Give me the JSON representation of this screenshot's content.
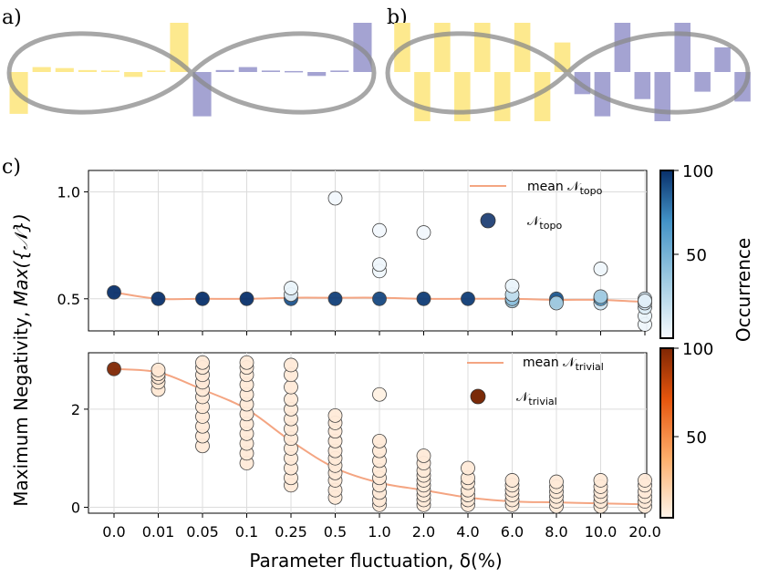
{
  "panels": {
    "a": {
      "label": "a)",
      "bars": [
        -0.85,
        0.1,
        0.08,
        0.04,
        0.03,
        -0.1,
        0.03,
        1.0,
        -0.9,
        0.04,
        0.1,
        0.03,
        0.02,
        -0.08,
        0.03,
        1.0
      ]
    },
    "b": {
      "label": "b)",
      "bars": [
        1.0,
        -1.0,
        1.0,
        -1.0,
        1.0,
        -1.0,
        1.0,
        -1.0,
        0.6,
        -0.45,
        -0.9,
        1.0,
        -0.55,
        -1.0,
        1.0,
        -0.4,
        0.5,
        -0.6
      ]
    },
    "c": {
      "label": "c)"
    }
  },
  "colors": {
    "topo_marker": "#2b4a7c",
    "trivial_marker": "#7a2a08",
    "mean_line": "#f4a582",
    "panel_a_b_yellow": "#fde98e",
    "panel_a_b_purple": "#a4a3d2",
    "loop": "#8a8a8a",
    "grid": "#dcdcdc"
  },
  "chart_data": [
    {
      "type": "scatter",
      "id": "topo",
      "categories": [
        "0.0",
        "0.01",
        "0.05",
        "0.1",
        "0.25",
        "0.5",
        "1.0",
        "2.0",
        "4.0",
        "6.0",
        "8.0",
        "10.0",
        "20.0"
      ],
      "ylabel": "Max({𝒩})",
      "ylim": [
        0.35,
        1.1
      ],
      "yticks": [
        "0.5",
        "1.0"
      ],
      "ytick_values": [
        0.5,
        1.0
      ],
      "grid": true,
      "legend": [
        "mean 𝒩",
        "topo",
        "𝒩",
        "topo"
      ],
      "legend_placement": "top-right",
      "colorbar": {
        "ticks": [
          "50",
          "100"
        ],
        "tick_values": [
          50,
          100
        ],
        "range": [
          0,
          100
        ],
        "colors": [
          "#f7fbff",
          "#9ecae1",
          "#4292c6",
          "#08306b"
        ]
      },
      "points": [
        [
          0,
          0.53,
          100
        ],
        [
          1,
          0.5,
          100
        ],
        [
          2,
          0.5,
          100
        ],
        [
          3,
          0.5,
          100
        ],
        [
          4,
          0.5,
          88
        ],
        [
          4,
          0.52,
          8
        ],
        [
          4,
          0.55,
          5
        ],
        [
          5,
          0.5,
          95
        ],
        [
          5,
          0.97,
          2
        ],
        [
          6,
          0.5,
          92
        ],
        [
          6,
          0.63,
          3
        ],
        [
          6,
          0.66,
          3
        ],
        [
          6,
          0.82,
          2
        ],
        [
          7,
          0.5,
          96
        ],
        [
          7,
          0.81,
          2
        ],
        [
          8,
          0.5,
          96
        ],
        [
          9,
          0.49,
          30
        ],
        [
          9,
          0.5,
          40
        ],
        [
          9,
          0.52,
          20
        ],
        [
          9,
          0.56,
          5
        ],
        [
          10,
          0.49,
          85
        ],
        [
          10,
          0.5,
          85
        ],
        [
          10,
          0.48,
          30
        ],
        [
          11,
          0.48,
          15
        ],
        [
          11,
          0.5,
          60
        ],
        [
          11,
          0.51,
          30
        ],
        [
          11,
          0.64,
          3
        ],
        [
          12,
          0.38,
          3
        ],
        [
          12,
          0.42,
          5
        ],
        [
          12,
          0.46,
          10
        ],
        [
          12,
          0.48,
          12
        ],
        [
          12,
          0.5,
          14
        ],
        [
          12,
          0.49,
          8
        ]
      ],
      "mean": [
        0.53,
        0.5,
        0.5,
        0.5,
        0.505,
        0.505,
        0.505,
        0.5,
        0.5,
        0.5,
        0.495,
        0.495,
        0.485
      ]
    },
    {
      "type": "scatter",
      "id": "trivial",
      "categories": [
        "0.0",
        "0.01",
        "0.05",
        "0.1",
        "0.25",
        "0.5",
        "1.0",
        "2.0",
        "4.0",
        "6.0",
        "8.0",
        "10.0",
        "20.0"
      ],
      "xlabel": "Parameter fluctuation, δ(%)",
      "ylabel": "Maximum Negativity,",
      "ylim": [
        -0.12,
        3.15
      ],
      "yticks": [
        "0",
        "2"
      ],
      "ytick_values": [
        0,
        2
      ],
      "grid": true,
      "legend": [
        "mean 𝒩",
        "trivial",
        "𝒩",
        "trivial"
      ],
      "legend_placement": "top-right",
      "colorbar": {
        "ticks": [
          "50",
          "100"
        ],
        "tick_values": [
          50,
          100
        ],
        "range": [
          0,
          100
        ],
        "colors": [
          "#fff5eb",
          "#fdae6b",
          "#e6550d",
          "#7f2704"
        ]
      },
      "points": [
        [
          0,
          2.82,
          100
        ],
        [
          1,
          2.4,
          6
        ],
        [
          1,
          2.55,
          6
        ],
        [
          1,
          2.65,
          6
        ],
        [
          1,
          2.72,
          6
        ],
        [
          1,
          2.8,
          6
        ],
        [
          2,
          1.25,
          5
        ],
        [
          2,
          1.45,
          5
        ],
        [
          2,
          1.65,
          5
        ],
        [
          2,
          1.85,
          5
        ],
        [
          2,
          2.05,
          5
        ],
        [
          2,
          2.25,
          5
        ],
        [
          2,
          2.4,
          5
        ],
        [
          2,
          2.55,
          5
        ],
        [
          2,
          2.7,
          5
        ],
        [
          2,
          2.85,
          5
        ],
        [
          2,
          2.95,
          5
        ],
        [
          3,
          0.9,
          5
        ],
        [
          3,
          1.1,
          5
        ],
        [
          3,
          1.3,
          5
        ],
        [
          3,
          1.5,
          5
        ],
        [
          3,
          1.7,
          5
        ],
        [
          3,
          1.9,
          5
        ],
        [
          3,
          2.1,
          5
        ],
        [
          3,
          2.3,
          5
        ],
        [
          3,
          2.5,
          5
        ],
        [
          3,
          2.7,
          5
        ],
        [
          3,
          2.85,
          5
        ],
        [
          3,
          2.95,
          5
        ],
        [
          4,
          0.45,
          5
        ],
        [
          4,
          0.6,
          5
        ],
        [
          4,
          0.8,
          5
        ],
        [
          4,
          1.0,
          5
        ],
        [
          4,
          1.2,
          5
        ],
        [
          4,
          1.4,
          5
        ],
        [
          4,
          1.6,
          5
        ],
        [
          4,
          1.8,
          5
        ],
        [
          4,
          2.0,
          5
        ],
        [
          4,
          2.2,
          5
        ],
        [
          4,
          2.45,
          5
        ],
        [
          4,
          2.7,
          5
        ],
        [
          4,
          2.9,
          5
        ],
        [
          5,
          0.2,
          5
        ],
        [
          5,
          0.35,
          5
        ],
        [
          5,
          0.55,
          5
        ],
        [
          5,
          0.7,
          5
        ],
        [
          5,
          0.85,
          5
        ],
        [
          5,
          1.0,
          5
        ],
        [
          5,
          1.15,
          5
        ],
        [
          5,
          1.35,
          5
        ],
        [
          5,
          1.55,
          5
        ],
        [
          5,
          1.72,
          5
        ],
        [
          5,
          1.87,
          5
        ],
        [
          6,
          0.05,
          5
        ],
        [
          6,
          0.15,
          5
        ],
        [
          6,
          0.3,
          5
        ],
        [
          6,
          0.45,
          5
        ],
        [
          6,
          0.6,
          5
        ],
        [
          6,
          0.75,
          5
        ],
        [
          6,
          0.95,
          5
        ],
        [
          6,
          1.15,
          5
        ],
        [
          6,
          1.35,
          5
        ],
        [
          6,
          2.3,
          2
        ],
        [
          7,
          0.05,
          5
        ],
        [
          7,
          0.15,
          5
        ],
        [
          7,
          0.25,
          5
        ],
        [
          7,
          0.35,
          5
        ],
        [
          7,
          0.45,
          5
        ],
        [
          7,
          0.55,
          5
        ],
        [
          7,
          0.65,
          5
        ],
        [
          7,
          0.75,
          5
        ],
        [
          7,
          0.9,
          5
        ],
        [
          7,
          1.05,
          5
        ],
        [
          8,
          0.05,
          5
        ],
        [
          8,
          0.15,
          5
        ],
        [
          8,
          0.25,
          5
        ],
        [
          8,
          0.35,
          5
        ],
        [
          8,
          0.5,
          5
        ],
        [
          8,
          0.6,
          5
        ],
        [
          8,
          0.8,
          5
        ],
        [
          9,
          0.05,
          5
        ],
        [
          9,
          0.15,
          5
        ],
        [
          9,
          0.25,
          5
        ],
        [
          9,
          0.35,
          5
        ],
        [
          9,
          0.45,
          5
        ],
        [
          9,
          0.55,
          5
        ],
        [
          10,
          0.02,
          5
        ],
        [
          10,
          0.12,
          5
        ],
        [
          10,
          0.22,
          5
        ],
        [
          10,
          0.32,
          5
        ],
        [
          10,
          0.42,
          5
        ],
        [
          10,
          0.52,
          5
        ],
        [
          11,
          0.02,
          5
        ],
        [
          11,
          0.12,
          5
        ],
        [
          11,
          0.22,
          5
        ],
        [
          11,
          0.32,
          5
        ],
        [
          11,
          0.42,
          5
        ],
        [
          11,
          0.55,
          5
        ],
        [
          12,
          0.02,
          5
        ],
        [
          12,
          0.12,
          5
        ],
        [
          12,
          0.22,
          5
        ],
        [
          12,
          0.32,
          5
        ],
        [
          12,
          0.45,
          5
        ],
        [
          12,
          0.55,
          5
        ]
      ],
      "mean": [
        2.82,
        2.75,
        2.4,
        2.0,
        1.35,
        0.8,
        0.5,
        0.35,
        0.2,
        0.12,
        0.1,
        0.08,
        0.06
      ]
    }
  ],
  "colorbar_label": "Occurrence"
}
